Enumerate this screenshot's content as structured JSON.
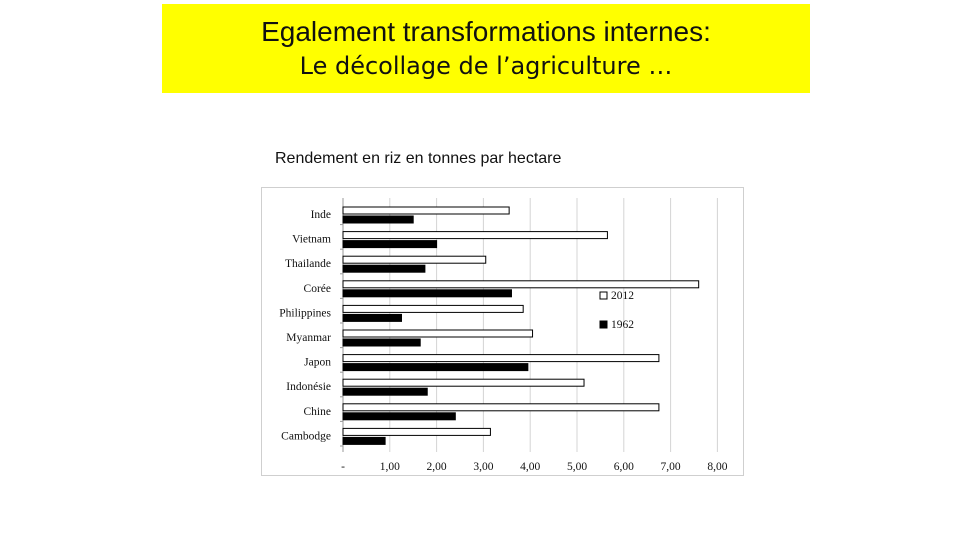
{
  "slide": {
    "title_line1": "Egalement transformations internes:",
    "title_line2": "Le décollage de l’agriculture …"
  },
  "chart_data": {
    "type": "bar",
    "orientation": "horizontal",
    "title": "Rendement en riz en tonnes par hectare",
    "categories": [
      "Inde",
      "Vietnam",
      "Thailande",
      "Corée",
      "Philippines",
      "Myanmar",
      "Japon",
      "Indonésie",
      "Chine",
      "Cambodge"
    ],
    "series": [
      {
        "name": "2012",
        "color": "#ffffff",
        "values": [
          3.55,
          5.65,
          3.05,
          7.6,
          3.85,
          4.05,
          6.75,
          5.15,
          6.75,
          3.15
        ]
      },
      {
        "name": "1962",
        "color": "#000000",
        "values": [
          1.5,
          2.0,
          1.75,
          3.6,
          1.25,
          1.65,
          3.95,
          1.8,
          2.4,
          0.9
        ]
      }
    ],
    "xlim": [
      0,
      8
    ],
    "x_ticks": [
      "-",
      "1,00",
      "2,00",
      "3,00",
      "4,00",
      "5,00",
      "6,00",
      "7,00",
      "8,00"
    ],
    "grid": "vertical",
    "legend_position": "right"
  }
}
